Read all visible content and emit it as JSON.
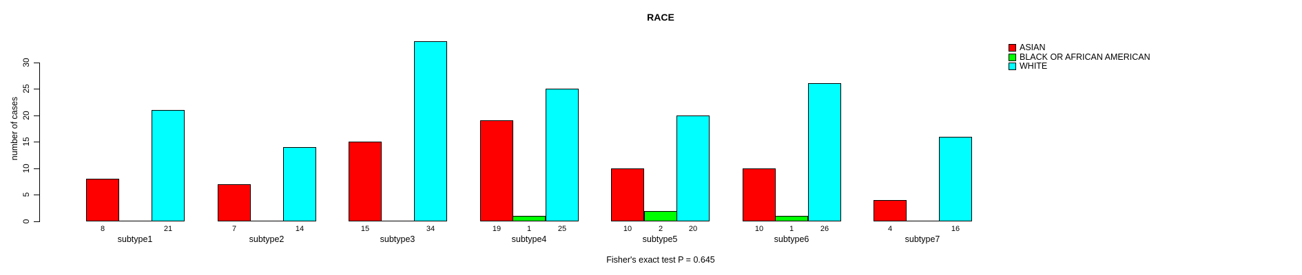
{
  "chart_data": {
    "type": "bar",
    "title": "RACE",
    "xlabel": "",
    "ylabel": "number of cases",
    "ylim": [
      0,
      34
    ],
    "y_ticks": [
      0,
      5,
      10,
      15,
      20,
      25,
      30
    ],
    "grid": false,
    "legend_position": "top-right",
    "categories": [
      "subtype1",
      "subtype2",
      "subtype3",
      "subtype4",
      "subtype5",
      "subtype6",
      "subtype7"
    ],
    "series": [
      {
        "name": "ASIAN",
        "color": "#ff0000",
        "values": [
          8,
          7,
          15,
          19,
          10,
          10,
          4
        ]
      },
      {
        "name": "BLACK OR AFRICAN AMERICAN",
        "color": "#00ff00",
        "values": [
          0,
          0,
          0,
          1,
          2,
          1,
          0
        ]
      },
      {
        "name": "WHITE",
        "color": "#00ffff",
        "values": [
          21,
          14,
          34,
          25,
          20,
          26,
          16
        ]
      }
    ],
    "bar_value_labels": "shown under each non-zero bar",
    "annotation": "Fisher's exact test P = 0.645"
  }
}
